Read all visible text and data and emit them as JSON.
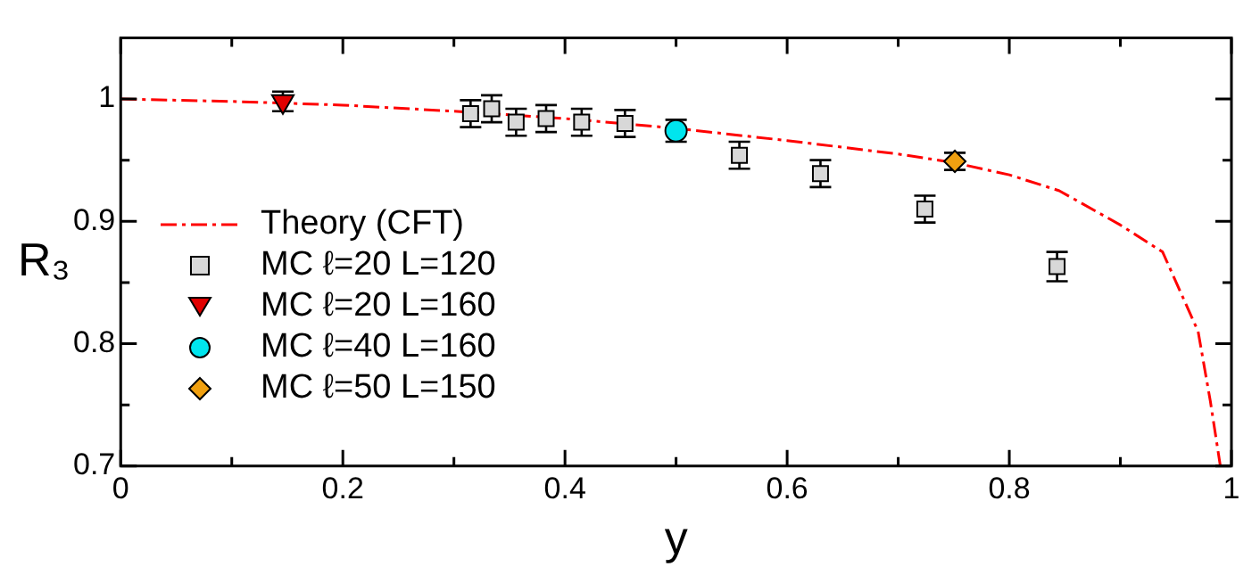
{
  "chart_data": {
    "type": "scatter",
    "xlabel": "y",
    "ylabel": "R₃",
    "xlim": [
      0,
      1
    ],
    "ylim": [
      0.7,
      1.05
    ],
    "xticks": [
      0,
      {
        "value": 0.1,
        "label": null
      },
      0.2,
      {
        "value": 0.3,
        "label": null
      },
      0.4,
      {
        "value": 0.5,
        "label": null
      },
      0.6,
      {
        "value": 0.7,
        "label": null
      },
      0.8,
      {
        "value": 0.9,
        "label": null
      },
      1
    ],
    "yticks": [
      0.7,
      {
        "value": 0.75,
        "label": null
      },
      0.8,
      {
        "value": 0.85,
        "label": null
      },
      0.9,
      {
        "value": 0.95,
        "label": null
      },
      1
    ],
    "legend": "bottom left",
    "series": [
      {
        "name": "Theory (CFT)",
        "type": "line",
        "color": "#ff0000",
        "line_style": "dashed",
        "marker": "none",
        "x": [
          0,
          0.1,
          0.2,
          0.3,
          0.4,
          0.5,
          0.6,
          0.7,
          0.75,
          0.8,
          0.845,
          0.9,
          0.938,
          0.97,
          0.981,
          0.99
        ],
        "values": [
          1,
          0.998,
          0.995,
          0.99,
          0.984,
          0.976,
          0.966,
          0.955,
          0.948,
          0.938,
          0.925,
          0.897,
          0.875,
          0.81,
          0.753,
          0.7
        ]
      },
      {
        "name": "MC ℓ=20 L=120",
        "color": "#d8d8d8",
        "marker": "square",
        "x": [
          0.315,
          0.334,
          0.356,
          0.383,
          0.415,
          0.454,
          0.557,
          0.63,
          0.724,
          0.843
        ],
        "values": [
          0.988,
          0.992,
          0.981,
          0.984,
          0.981,
          0.98,
          0.954,
          0.939,
          0.91,
          0.863
        ],
        "errors": [
          0.011,
          0.011,
          0.011,
          0.011,
          0.011,
          0.011,
          0.011,
          0.011,
          0.011,
          0.012
        ]
      },
      {
        "name": "MC ℓ=20 L=160",
        "color": "#e00000",
        "marker": "triangle",
        "x": [
          0.146
        ],
        "values": [
          0.998
        ],
        "errors": [
          0.008
        ]
      },
      {
        "name": "MC ℓ=40 L=160",
        "color": "#00e5ee",
        "marker": "circle",
        "x": [
          0.5
        ],
        "values": [
          0.974
        ],
        "errors": [
          0.009
        ]
      },
      {
        "name": "MC ℓ=50 L=150",
        "color": "#f0a010",
        "marker": "diamond",
        "x": [
          0.751
        ],
        "values": [
          0.949
        ],
        "errors": [
          0.007
        ]
      }
    ]
  }
}
